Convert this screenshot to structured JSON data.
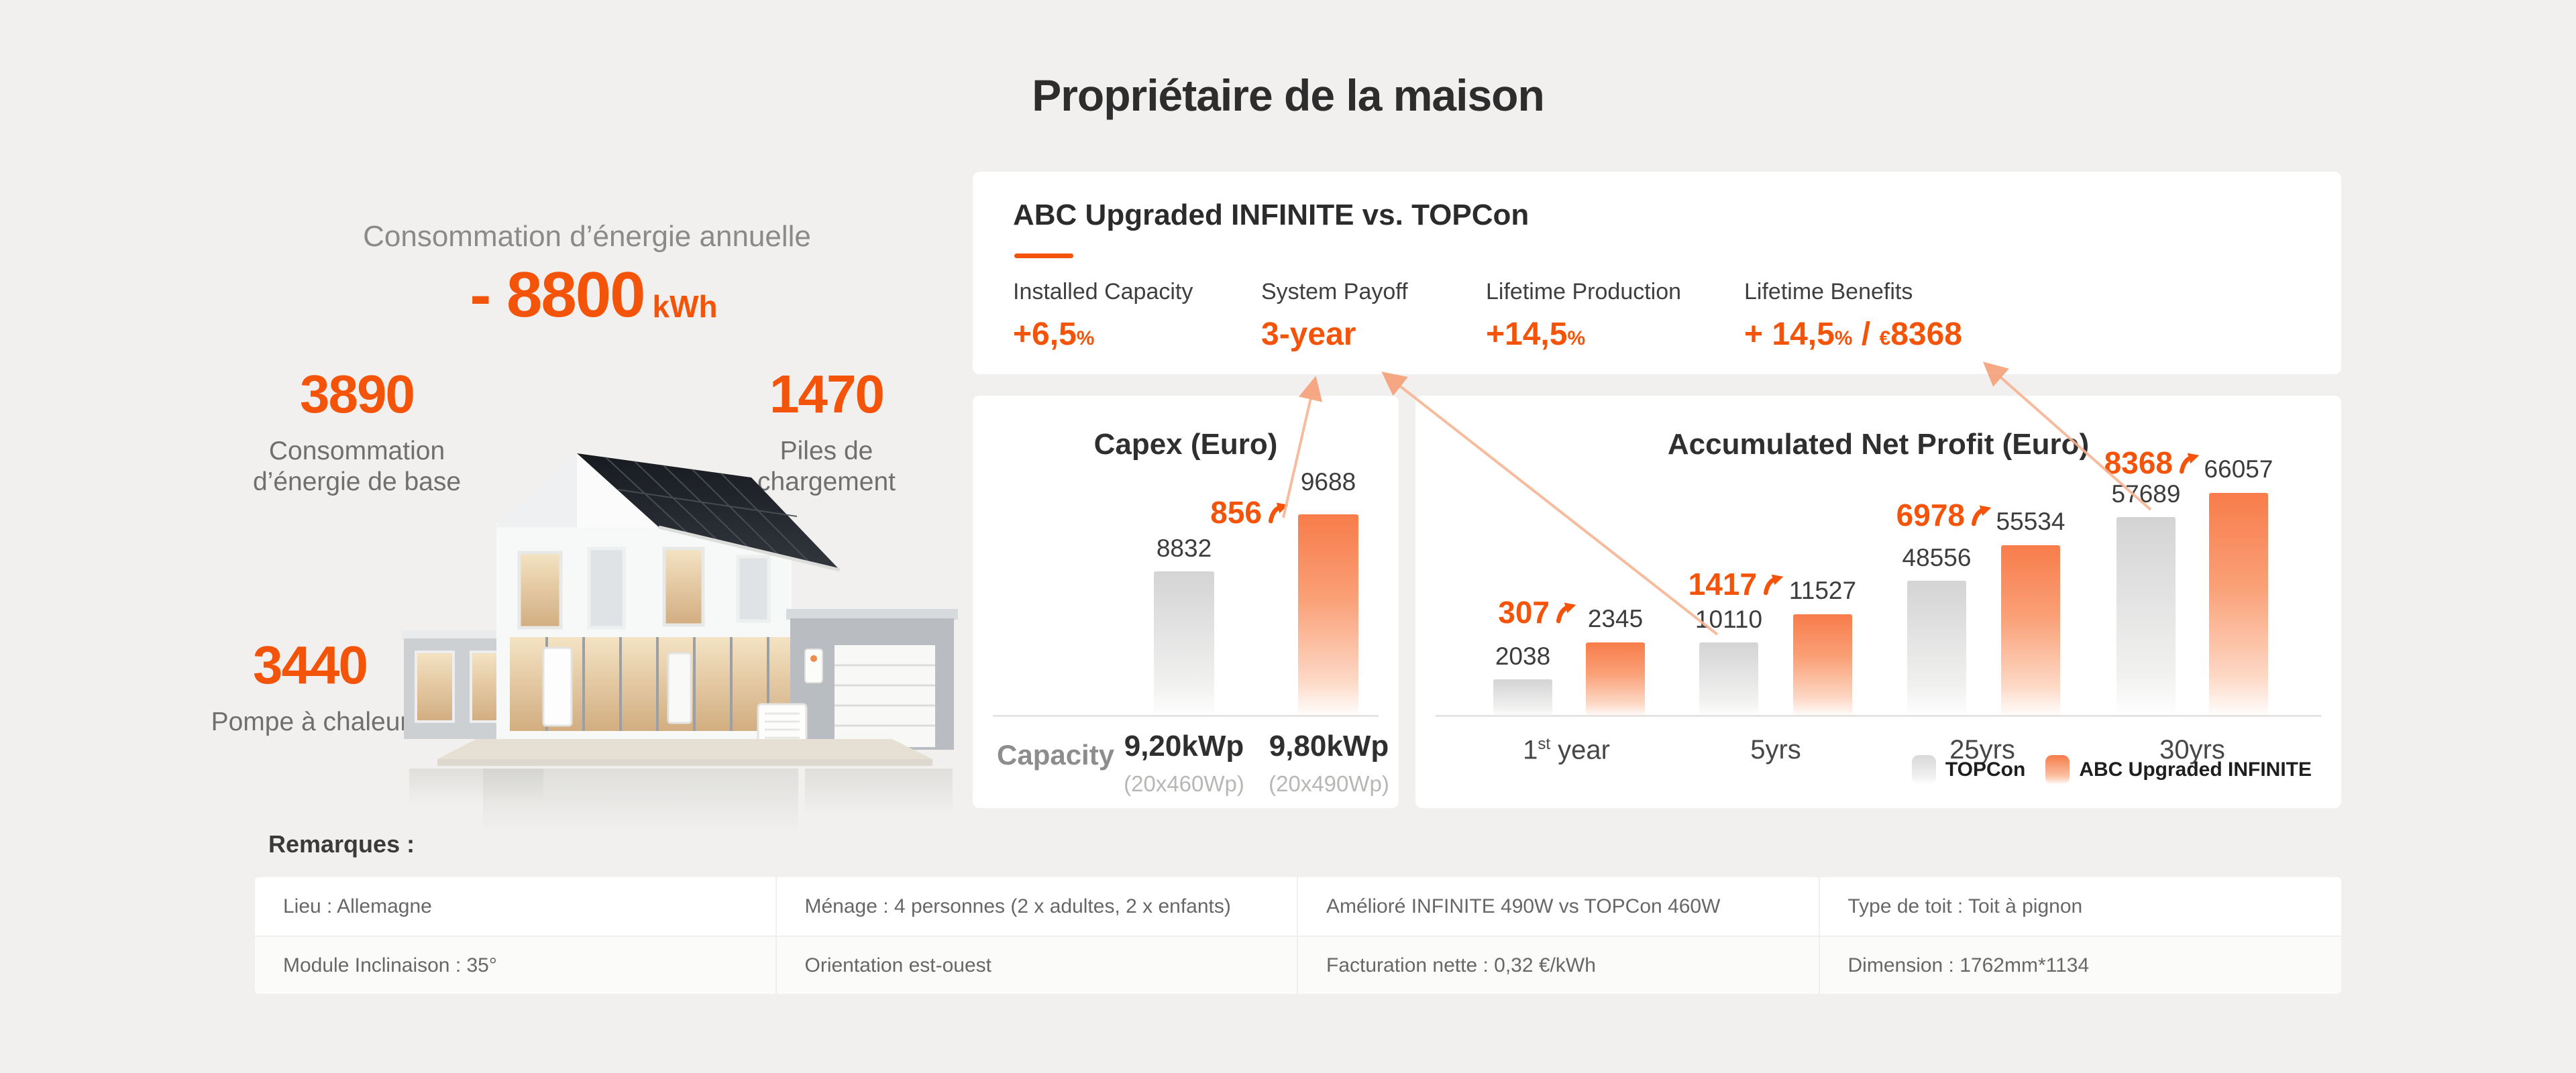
{
  "page": {
    "title": "Propriétaire de la maison",
    "background": "#f1f0ee",
    "accent_color": "#f4540a"
  },
  "left": {
    "annual_label": "Consommation d’énergie annuelle",
    "annual_value": "- 8800",
    "annual_unit": "kWh",
    "base_value": "3890",
    "base_label_line1": "Consommation",
    "base_label_line2": "d’énergie de base",
    "battery_value": "1470",
    "battery_label_line1": "Piles de",
    "battery_label_line2": "chargement",
    "heatpump_value": "3440",
    "heatpump_label": "Pompe à chaleur"
  },
  "comparison": {
    "title": "ABC Upgraded INFINITE vs. TOPCon",
    "stats": [
      {
        "label": "Installed Capacity",
        "parts": [
          {
            "t": "+6,5",
            "small": false
          },
          {
            "t": "%",
            "small": true
          }
        ]
      },
      {
        "label": "System Payoff",
        "parts": [
          {
            "t": "3-year",
            "small": false
          }
        ]
      },
      {
        "label": "Lifetime Production",
        "parts": [
          {
            "t": "+14,5",
            "small": false
          },
          {
            "t": "%",
            "small": true
          }
        ]
      },
      {
        "label": "Lifetime Benefits",
        "parts": [
          {
            "t": "+ 14,5",
            "small": false
          },
          {
            "t": "%",
            "small": true
          },
          {
            "t": " / ",
            "small": false
          },
          {
            "t": "€",
            "small": true
          },
          {
            "t": "8368",
            "small": false
          }
        ]
      }
    ]
  },
  "chart_data": [
    {
      "type": "bar",
      "title": "Capex (Euro)",
      "categories": [
        "TOPCon",
        "ABC Upgraded INFINITE"
      ],
      "values": [
        8832,
        9688
      ],
      "delta": "856",
      "value_labels": [
        "8832",
        "9688"
      ],
      "axis": {
        "label": "Capacity",
        "cols": [
          {
            "main": "9,20kWp",
            "sub": "(20x460Wp)"
          },
          {
            "main": "9,80kWp",
            "sub": "(20x490Wp)"
          }
        ]
      },
      "grid": false,
      "legend_position": "none"
    },
    {
      "type": "bar",
      "title": "Accumulated Net Profit (Euro)",
      "categories": [
        "1st year",
        "5yrs",
        "25yrs",
        "30yrs"
      ],
      "series": [
        {
          "name": "TOPCon",
          "values": [
            2038,
            10110,
            48556,
            57689
          ]
        },
        {
          "name": "ABC Upgraded INFINITE",
          "values": [
            2345,
            11527,
            55534,
            66057
          ]
        }
      ],
      "deltas": [
        "307",
        "1417",
        "6978",
        "8368"
      ],
      "groups": [
        {
          "cat_pre": "1",
          "cat_sup": "st",
          "cat_post": " year",
          "gray": "2038",
          "orange": "2345",
          "delta": "307"
        },
        {
          "cat_pre": "5yrs",
          "cat_sup": "",
          "cat_post": "",
          "gray": "10110",
          "orange": "11527",
          "delta": "1417"
        },
        {
          "cat_pre": "25yrs",
          "cat_sup": "",
          "cat_post": "",
          "gray": "48556",
          "orange": "55534",
          "delta": "6978"
        },
        {
          "cat_pre": "30yrs",
          "cat_sup": "",
          "cat_post": "",
          "gray": "57689",
          "orange": "66057",
          "delta": "8368"
        }
      ],
      "legend": [
        {
          "name": "TOPCon",
          "color": "gray"
        },
        {
          "name": "ABC Upgraded INFINITE",
          "color": "orange"
        }
      ],
      "grid": false,
      "legend_position": "bottom-right"
    }
  ],
  "remarks": {
    "label": "Remarques :",
    "rows": [
      [
        "Lieu : Allemagne",
        "Ménage : 4 personnes (2 x adultes, 2 x enfants)",
        "Amélioré INFINITE 490W vs TOPCon 460W",
        "Type de toit : Toit à pignon"
      ],
      [
        "Module Inclinaison : 35°",
        "Orientation est-ouest",
        "Facturation nette : 0,32 €/kWh",
        "Dimension : 1762mm*1134"
      ]
    ]
  }
}
